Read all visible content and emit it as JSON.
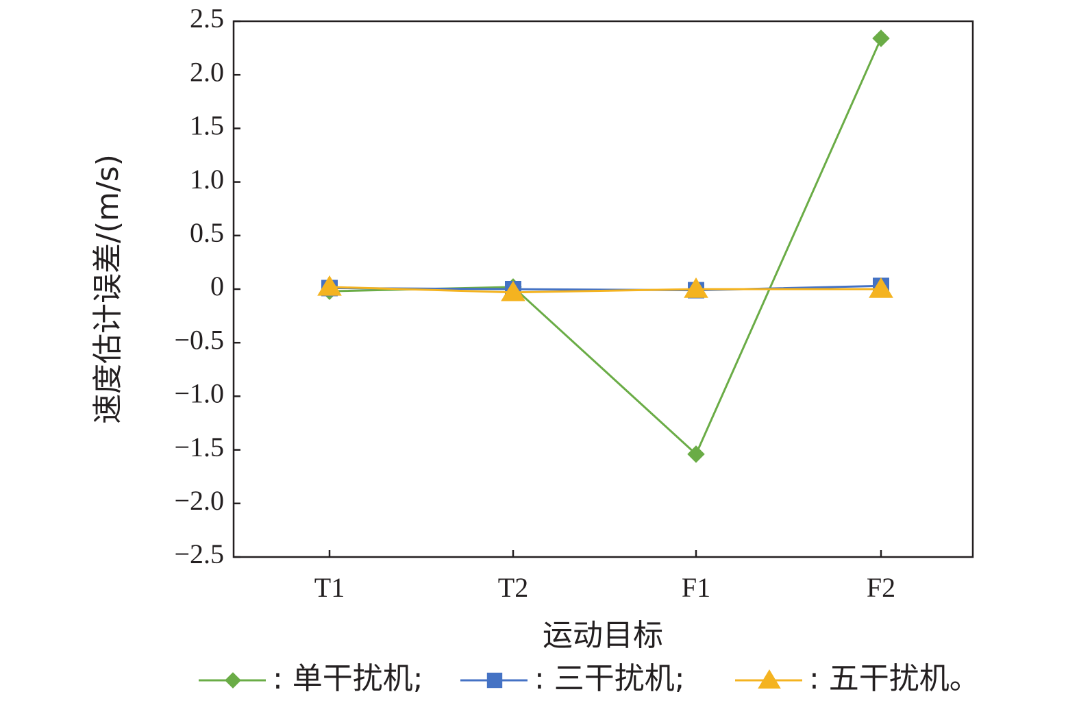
{
  "chart_data": {
    "type": "line",
    "categories": [
      "T1",
      "T2",
      "F1",
      "F2"
    ],
    "series": [
      {
        "name": "单干扰机",
        "values": [
          -0.02,
          0.02,
          -1.54,
          2.34
        ],
        "color": "#6aac46",
        "marker": "diamond"
      },
      {
        "name": "三干扰机",
        "values": [
          0.01,
          0.0,
          -0.01,
          0.03
        ],
        "color": "#4472c4",
        "marker": "square"
      },
      {
        "name": "五干扰机",
        "values": [
          0.02,
          -0.03,
          0.0,
          0.0
        ],
        "color": "#f4b320",
        "marker": "triangle"
      }
    ],
    "ylim": [
      -2.5,
      2.5
    ],
    "yticks": [
      "2.5",
      "2.0",
      "1.5",
      "1.0",
      "0.5",
      "0",
      "−0.5",
      "−1.0",
      "−1.5",
      "−2.0",
      "−2.5"
    ],
    "xlabel": "运动目标",
    "ylabel": "速度估计误差/(m/s)",
    "legend": {
      "position": "bottom",
      "items": [
        ": 单干扰机;",
        ": 三干扰机;",
        ": 五干扰机。"
      ]
    },
    "grid": false
  }
}
